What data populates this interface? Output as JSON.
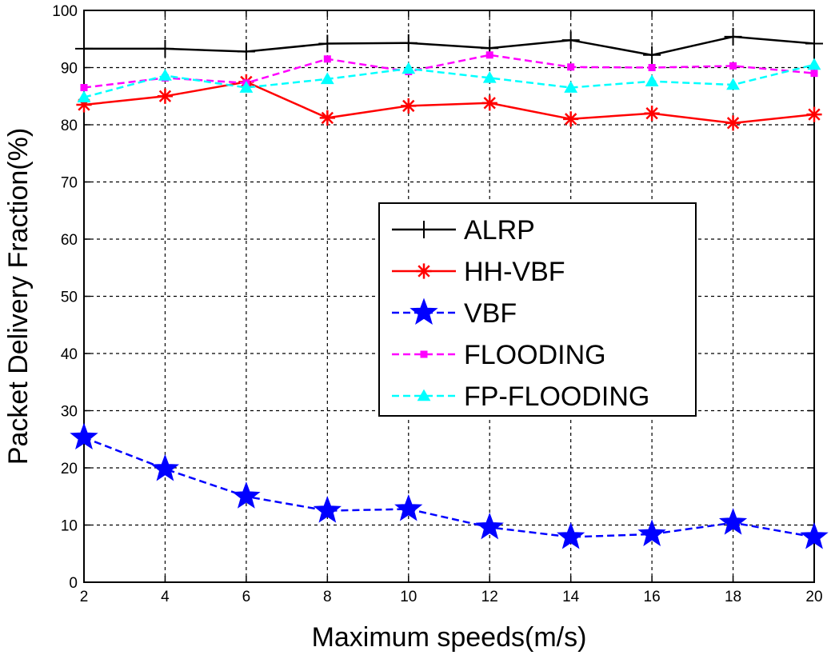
{
  "chart_data": {
    "type": "line",
    "title": "",
    "xlabel": "Maximum speeds(m/s)",
    "ylabel": "Packet Delivery Fraction(%)",
    "x": [
      2,
      4,
      6,
      8,
      10,
      12,
      14,
      16,
      18,
      20
    ],
    "xlim": [
      2,
      20
    ],
    "ylim": [
      0,
      100
    ],
    "xticks": [
      2,
      4,
      6,
      8,
      10,
      12,
      14,
      16,
      18,
      20
    ],
    "yticks": [
      0,
      10,
      20,
      30,
      40,
      50,
      60,
      70,
      80,
      90,
      100
    ],
    "grid": true,
    "legend_position": "center-right",
    "series": [
      {
        "name": "ALRP",
        "values": [
          93.3,
          93.3,
          92.8,
          94.2,
          94.3,
          93.4,
          94.8,
          92.2,
          95.4,
          94.2
        ],
        "color": "#000000",
        "line_style": "solid",
        "marker": "plus"
      },
      {
        "name": "HH-VBF",
        "values": [
          83.5,
          85.0,
          87.5,
          81.2,
          83.3,
          83.8,
          81.0,
          82.0,
          80.3,
          81.8
        ],
        "color": "#ff0000",
        "line_style": "solid",
        "marker": "asterisk"
      },
      {
        "name": "VBF",
        "values": [
          25.3,
          19.8,
          15.0,
          12.5,
          12.8,
          9.6,
          7.9,
          8.4,
          10.4,
          7.9
        ],
        "color": "#0000ff",
        "line_style": "dashed",
        "marker": "star"
      },
      {
        "name": "FLOODING",
        "values": [
          86.5,
          88.2,
          87.3,
          91.5,
          89.3,
          92.2,
          90.1,
          90.0,
          90.3,
          89.0
        ],
        "color": "#ff00ff",
        "line_style": "dashed",
        "marker": "square"
      },
      {
        "name": "FP-FLOODING",
        "values": [
          84.8,
          88.6,
          86.5,
          88.0,
          89.8,
          88.2,
          86.5,
          87.6,
          87.0,
          90.5
        ],
        "color": "#00ffff",
        "line_style": "dashed",
        "marker": "triangle"
      }
    ]
  }
}
